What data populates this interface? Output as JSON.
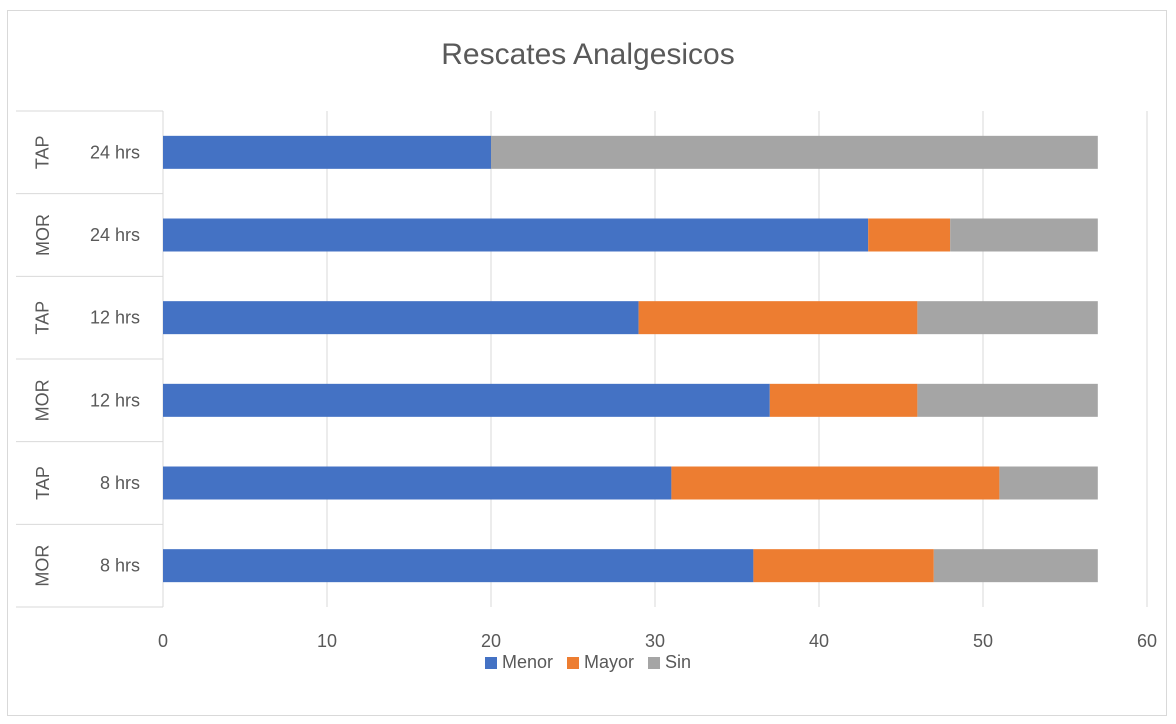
{
  "chart_data": {
    "type": "bar",
    "orientation": "horizontal",
    "stacked": true,
    "title": "Rescates Analgesicos",
    "categories": [
      {
        "group": "MOR",
        "label": "8 hrs"
      },
      {
        "group": "TAP",
        "label": "8 hrs"
      },
      {
        "group": "MOR",
        "label": "12 hrs"
      },
      {
        "group": "TAP",
        "label": "12 hrs"
      },
      {
        "group": "MOR",
        "label": "24 hrs"
      },
      {
        "group": "TAP",
        "label": "24 hrs"
      }
    ],
    "series": [
      {
        "name": "Menor",
        "color": "#4472c4",
        "values": [
          36,
          31,
          37,
          29,
          43,
          20
        ]
      },
      {
        "name": "Mayor",
        "color": "#ed7d31",
        "values": [
          11,
          20,
          9,
          17,
          5,
          0
        ]
      },
      {
        "name": "Sin",
        "color": "#a5a5a5",
        "values": [
          10,
          6,
          11,
          11,
          9,
          37
        ]
      }
    ],
    "xlim": [
      0,
      60
    ],
    "xticks": [
      0,
      10,
      20,
      30,
      40,
      50,
      60
    ],
    "grid": true,
    "legend_position": "bottom"
  }
}
